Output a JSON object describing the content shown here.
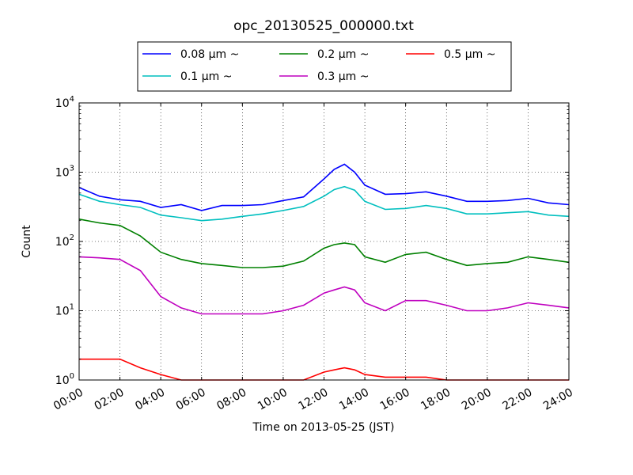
{
  "chart_data": {
    "type": "line",
    "title": "opc_20130525_000000.txt",
    "xlabel": "Time on 2013-05-25 (JST)",
    "ylabel": "Count",
    "yscale": "log",
    "ylim": [
      1,
      10000
    ],
    "xlim": [
      "2013-05-25 00:00",
      "2013-05-26 00:00"
    ],
    "grid": true,
    "legend_position": "top-center",
    "x_ticks": [
      "00:00",
      "02:00",
      "04:00",
      "06:00",
      "08:00",
      "10:00",
      "12:00",
      "14:00",
      "16:00",
      "18:00",
      "20:00",
      "22:00",
      "24:00"
    ],
    "y_ticks": [
      {
        "base": "10",
        "exp": "0"
      },
      {
        "base": "10",
        "exp": "1"
      },
      {
        "base": "10",
        "exp": "2"
      },
      {
        "base": "10",
        "exp": "3"
      },
      {
        "base": "10",
        "exp": "4"
      }
    ],
    "x_hours": [
      0,
      1,
      2,
      3,
      4,
      5,
      6,
      7,
      8,
      9,
      10,
      11,
      12,
      12.5,
      13,
      13.5,
      14,
      15,
      16,
      17,
      18,
      19,
      20,
      21,
      22,
      23,
      24
    ],
    "series": [
      {
        "name": "0.08 μm ~",
        "color": "#0000ff",
        "values": [
          600,
          450,
          400,
          380,
          310,
          340,
          280,
          330,
          330,
          340,
          390,
          440,
          800,
          1100,
          1300,
          1000,
          650,
          480,
          490,
          520,
          450,
          380,
          380,
          390,
          420,
          360,
          340
        ]
      },
      {
        "name": "0.1 μm ~",
        "color": "#00bfbf",
        "values": [
          480,
          380,
          340,
          310,
          240,
          220,
          200,
          210,
          230,
          250,
          280,
          320,
          450,
          560,
          620,
          550,
          380,
          290,
          300,
          330,
          300,
          250,
          250,
          260,
          270,
          240,
          230
        ]
      },
      {
        "name": "0.2 μm ~",
        "color": "#008000",
        "values": [
          210,
          185,
          170,
          120,
          70,
          55,
          48,
          45,
          42,
          42,
          44,
          52,
          80,
          90,
          95,
          90,
          60,
          50,
          65,
          70,
          55,
          45,
          48,
          50,
          60,
          55,
          50
        ]
      },
      {
        "name": "0.3 μm ~",
        "color": "#bf00bf",
        "values": [
          60,
          58,
          55,
          38,
          16,
          11,
          9,
          9,
          9,
          9,
          10,
          12,
          18,
          20,
          22,
          20,
          13,
          10,
          14,
          14,
          12,
          10,
          10,
          11,
          13,
          12,
          11
        ]
      },
      {
        "name": "0.5 μm ~",
        "color": "#ff0000",
        "values": [
          2,
          2,
          2,
          1.5,
          1.2,
          1,
          1,
          1,
          1,
          1,
          1,
          1,
          1.3,
          1.4,
          1.5,
          1.4,
          1.2,
          1.1,
          1.1,
          1.1,
          1,
          1,
          1,
          1,
          1,
          1,
          1
        ]
      }
    ]
  }
}
